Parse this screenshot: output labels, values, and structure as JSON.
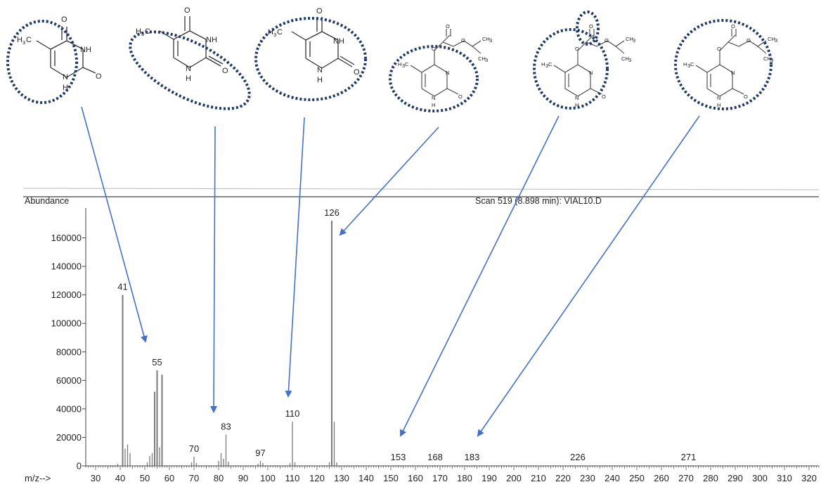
{
  "chart_data": {
    "type": "bar",
    "title": "Scan 519 (8.898 min): VIAL10.D",
    "ylabel": "Abundance",
    "xlabel": "m/z-->",
    "xlim": [
      26,
      324
    ],
    "ylim": [
      0,
      181000
    ],
    "x_ticks": [
      30,
      40,
      50,
      60,
      70,
      80,
      90,
      100,
      110,
      120,
      130,
      140,
      150,
      160,
      170,
      180,
      190,
      200,
      210,
      220,
      230,
      240,
      250,
      260,
      270,
      280,
      290,
      300,
      310,
      320
    ],
    "y_ticks": [
      0,
      20000,
      40000,
      60000,
      80000,
      100000,
      120000,
      140000,
      160000
    ],
    "peaks": [
      {
        "mz": 39,
        "abundance": 1500
      },
      {
        "mz": 41,
        "abundance": 120000
      },
      {
        "mz": 42,
        "abundance": 12000
      },
      {
        "mz": 43,
        "abundance": 15000
      },
      {
        "mz": 44,
        "abundance": 9000
      },
      {
        "mz": 51,
        "abundance": 2500
      },
      {
        "mz": 52,
        "abundance": 7000
      },
      {
        "mz": 53,
        "abundance": 9000
      },
      {
        "mz": 54,
        "abundance": 52000
      },
      {
        "mz": 55,
        "abundance": 67000
      },
      {
        "mz": 56,
        "abundance": 13000
      },
      {
        "mz": 57,
        "abundance": 64000
      },
      {
        "mz": 69,
        "abundance": 2500
      },
      {
        "mz": 70,
        "abundance": 6500
      },
      {
        "mz": 71,
        "abundance": 2000
      },
      {
        "mz": 80,
        "abundance": 3500
      },
      {
        "mz": 81,
        "abundance": 9000
      },
      {
        "mz": 82,
        "abundance": 5000
      },
      {
        "mz": 83,
        "abundance": 22000
      },
      {
        "mz": 84,
        "abundance": 3000
      },
      {
        "mz": 96,
        "abundance": 1500
      },
      {
        "mz": 97,
        "abundance": 3500
      },
      {
        "mz": 98,
        "abundance": 2000
      },
      {
        "mz": 109,
        "abundance": 2000
      },
      {
        "mz": 110,
        "abundance": 31000
      },
      {
        "mz": 111,
        "abundance": 2500
      },
      {
        "mz": 125,
        "abundance": 2500
      },
      {
        "mz": 126,
        "abundance": 172000
      },
      {
        "mz": 127,
        "abundance": 31000
      },
      {
        "mz": 128,
        "abundance": 2500
      },
      {
        "mz": 153,
        "abundance": 500
      },
      {
        "mz": 168,
        "abundance": 500
      },
      {
        "mz": 183,
        "abundance": 400
      },
      {
        "mz": 226,
        "abundance": 400
      },
      {
        "mz": 271,
        "abundance": 400
      }
    ],
    "labels": [
      {
        "mz": 41,
        "text": "41",
        "yv": 120000
      },
      {
        "mz": 55,
        "text": "55",
        "yv": 67000
      },
      {
        "mz": 70,
        "text": "70",
        "yv": 6500
      },
      {
        "mz": 83,
        "text": "83",
        "yv": 22000
      },
      {
        "mz": 97,
        "text": "97",
        "yv": 3500
      },
      {
        "mz": 110,
        "text": "110",
        "yv": 31000
      },
      {
        "mz": 126,
        "text": "126",
        "yv": 172000
      },
      {
        "mz": 153,
        "text": "153",
        "yv": 500
      },
      {
        "mz": 168,
        "text": "168",
        "yv": 500
      },
      {
        "mz": 183,
        "text": "183",
        "yv": 400
      },
      {
        "mz": 226,
        "text": "226",
        "yv": 400
      },
      {
        "mz": 271,
        "text": "271",
        "yv": 400
      }
    ],
    "grid": false,
    "legend": "none"
  },
  "colors": {
    "arrow": "#4472C4",
    "ellipse": "#1F3A68",
    "bars": "#7a7a7a",
    "text": "#222222"
  },
  "structures": [
    {
      "name": "thymine-methyl-ring",
      "labels": {
        "ch3": "H",
        "ch3sub": "3",
        "ch3tail": "C",
        "nh": "NH",
        "o_top": "O",
        "o_right": "O",
        "n_bottom": "N",
        "h_bottom": "H"
      },
      "points_to_mz": 55
    },
    {
      "name": "thymine-ring-open",
      "labels": {
        "ch3": "H",
        "ch3sub": "3",
        "ch3tail": "C",
        "nh": "NH",
        "o_top": "O",
        "o_right": "O",
        "n_bottom": "N",
        "h_bottom": "H"
      },
      "points_to_mz": 83
    },
    {
      "name": "thymine-full",
      "labels": {
        "ch3": "H",
        "ch3sub": "3",
        "ch3tail": "C",
        "nh": "NH",
        "o_top": "O",
        "o_right": "O",
        "n_bottom": "N",
        "h_bottom": "H"
      },
      "points_to_mz": 110
    },
    {
      "name": "carbonate-core",
      "labels": {
        "ch3": "H",
        "ch3sub": "3",
        "ch3tail": "C",
        "n_mid": "N",
        "o_right": "O",
        "n_bottom": "N",
        "h_bottom": "H",
        "o_link": "O",
        "o_carb": "O",
        "o_ester": "O",
        "ch3_a": "CH",
        "ch3_a_sub": "3",
        "ch3_b": "CH",
        "ch3_b_sub": "3"
      },
      "points_to_mz": 126
    },
    {
      "name": "carbonate-co-loss",
      "labels": {
        "ch3": "H",
        "ch3sub": "3",
        "ch3tail": "C",
        "n_mid": "N",
        "o_right": "O",
        "n_bottom": "N",
        "h_bottom": "H",
        "o_link": "O",
        "o_carb": "O",
        "o_ester": "O",
        "ch3_a": "CH",
        "ch3_a_sub": "3",
        "ch3_b": "CH",
        "ch3_b_sub": "3"
      },
      "points_to_mz": 153
    },
    {
      "name": "carbonate-isopropyl",
      "labels": {
        "ch3": "H",
        "ch3sub": "3",
        "ch3tail": "C",
        "n_mid": "N",
        "o_right": "O",
        "n_bottom": "N",
        "h_bottom": "H",
        "o_link": "O",
        "o_carb": "O",
        "o_ester": "O",
        "ch3_a": "CH",
        "ch3_a_sub": "3",
        "ch3_b": "CH",
        "ch3_b_sub": "3"
      },
      "points_to_mz": 183
    }
  ]
}
